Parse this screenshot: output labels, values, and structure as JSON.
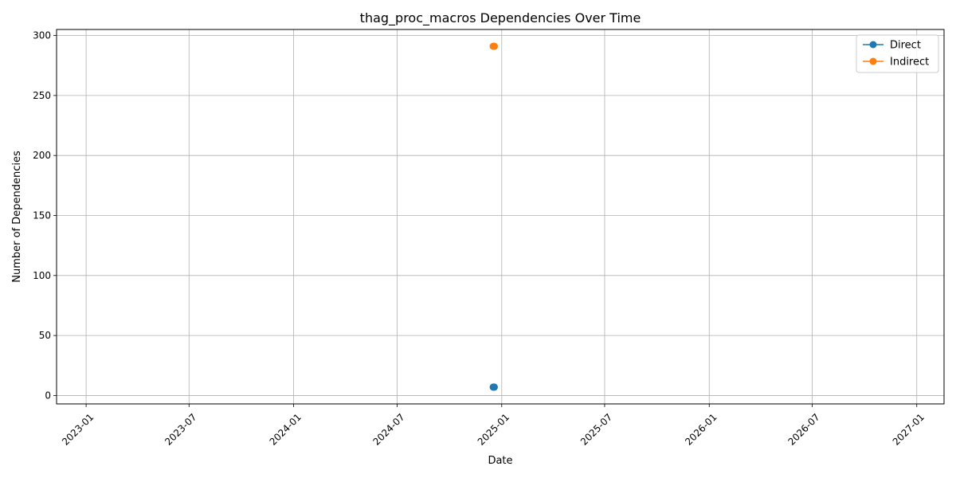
{
  "chart_data": {
    "type": "line",
    "title": "thag_proc_macros Dependencies Over Time",
    "xlabel": "Date",
    "ylabel": "Number of Dependencies",
    "x_ticks": [
      "2023-01",
      "2023-07",
      "2024-01",
      "2024-07",
      "2025-01",
      "2025-07",
      "2026-01",
      "2026-07",
      "2027-01"
    ],
    "xlim": [
      "2022-11-10",
      "2027-02-18"
    ],
    "y_ticks": [
      0,
      50,
      100,
      150,
      200,
      250,
      300
    ],
    "ylim": [
      -7,
      305
    ],
    "grid": true,
    "legend_position": "top-right",
    "series": [
      {
        "name": "Direct",
        "color": "#1f77b4",
        "points": [
          {
            "x": "2024-12-17",
            "y": 7
          },
          {
            "x": "2024-12-18",
            "y": 7
          },
          {
            "x": "2024-12-19",
            "y": 7
          }
        ]
      },
      {
        "name": "Indirect",
        "color": "#ff7f0e",
        "points": [
          {
            "x": "2024-12-17",
            "y": 291
          },
          {
            "x": "2024-12-18",
            "y": 291
          },
          {
            "x": "2024-12-19",
            "y": 291
          }
        ]
      }
    ]
  }
}
